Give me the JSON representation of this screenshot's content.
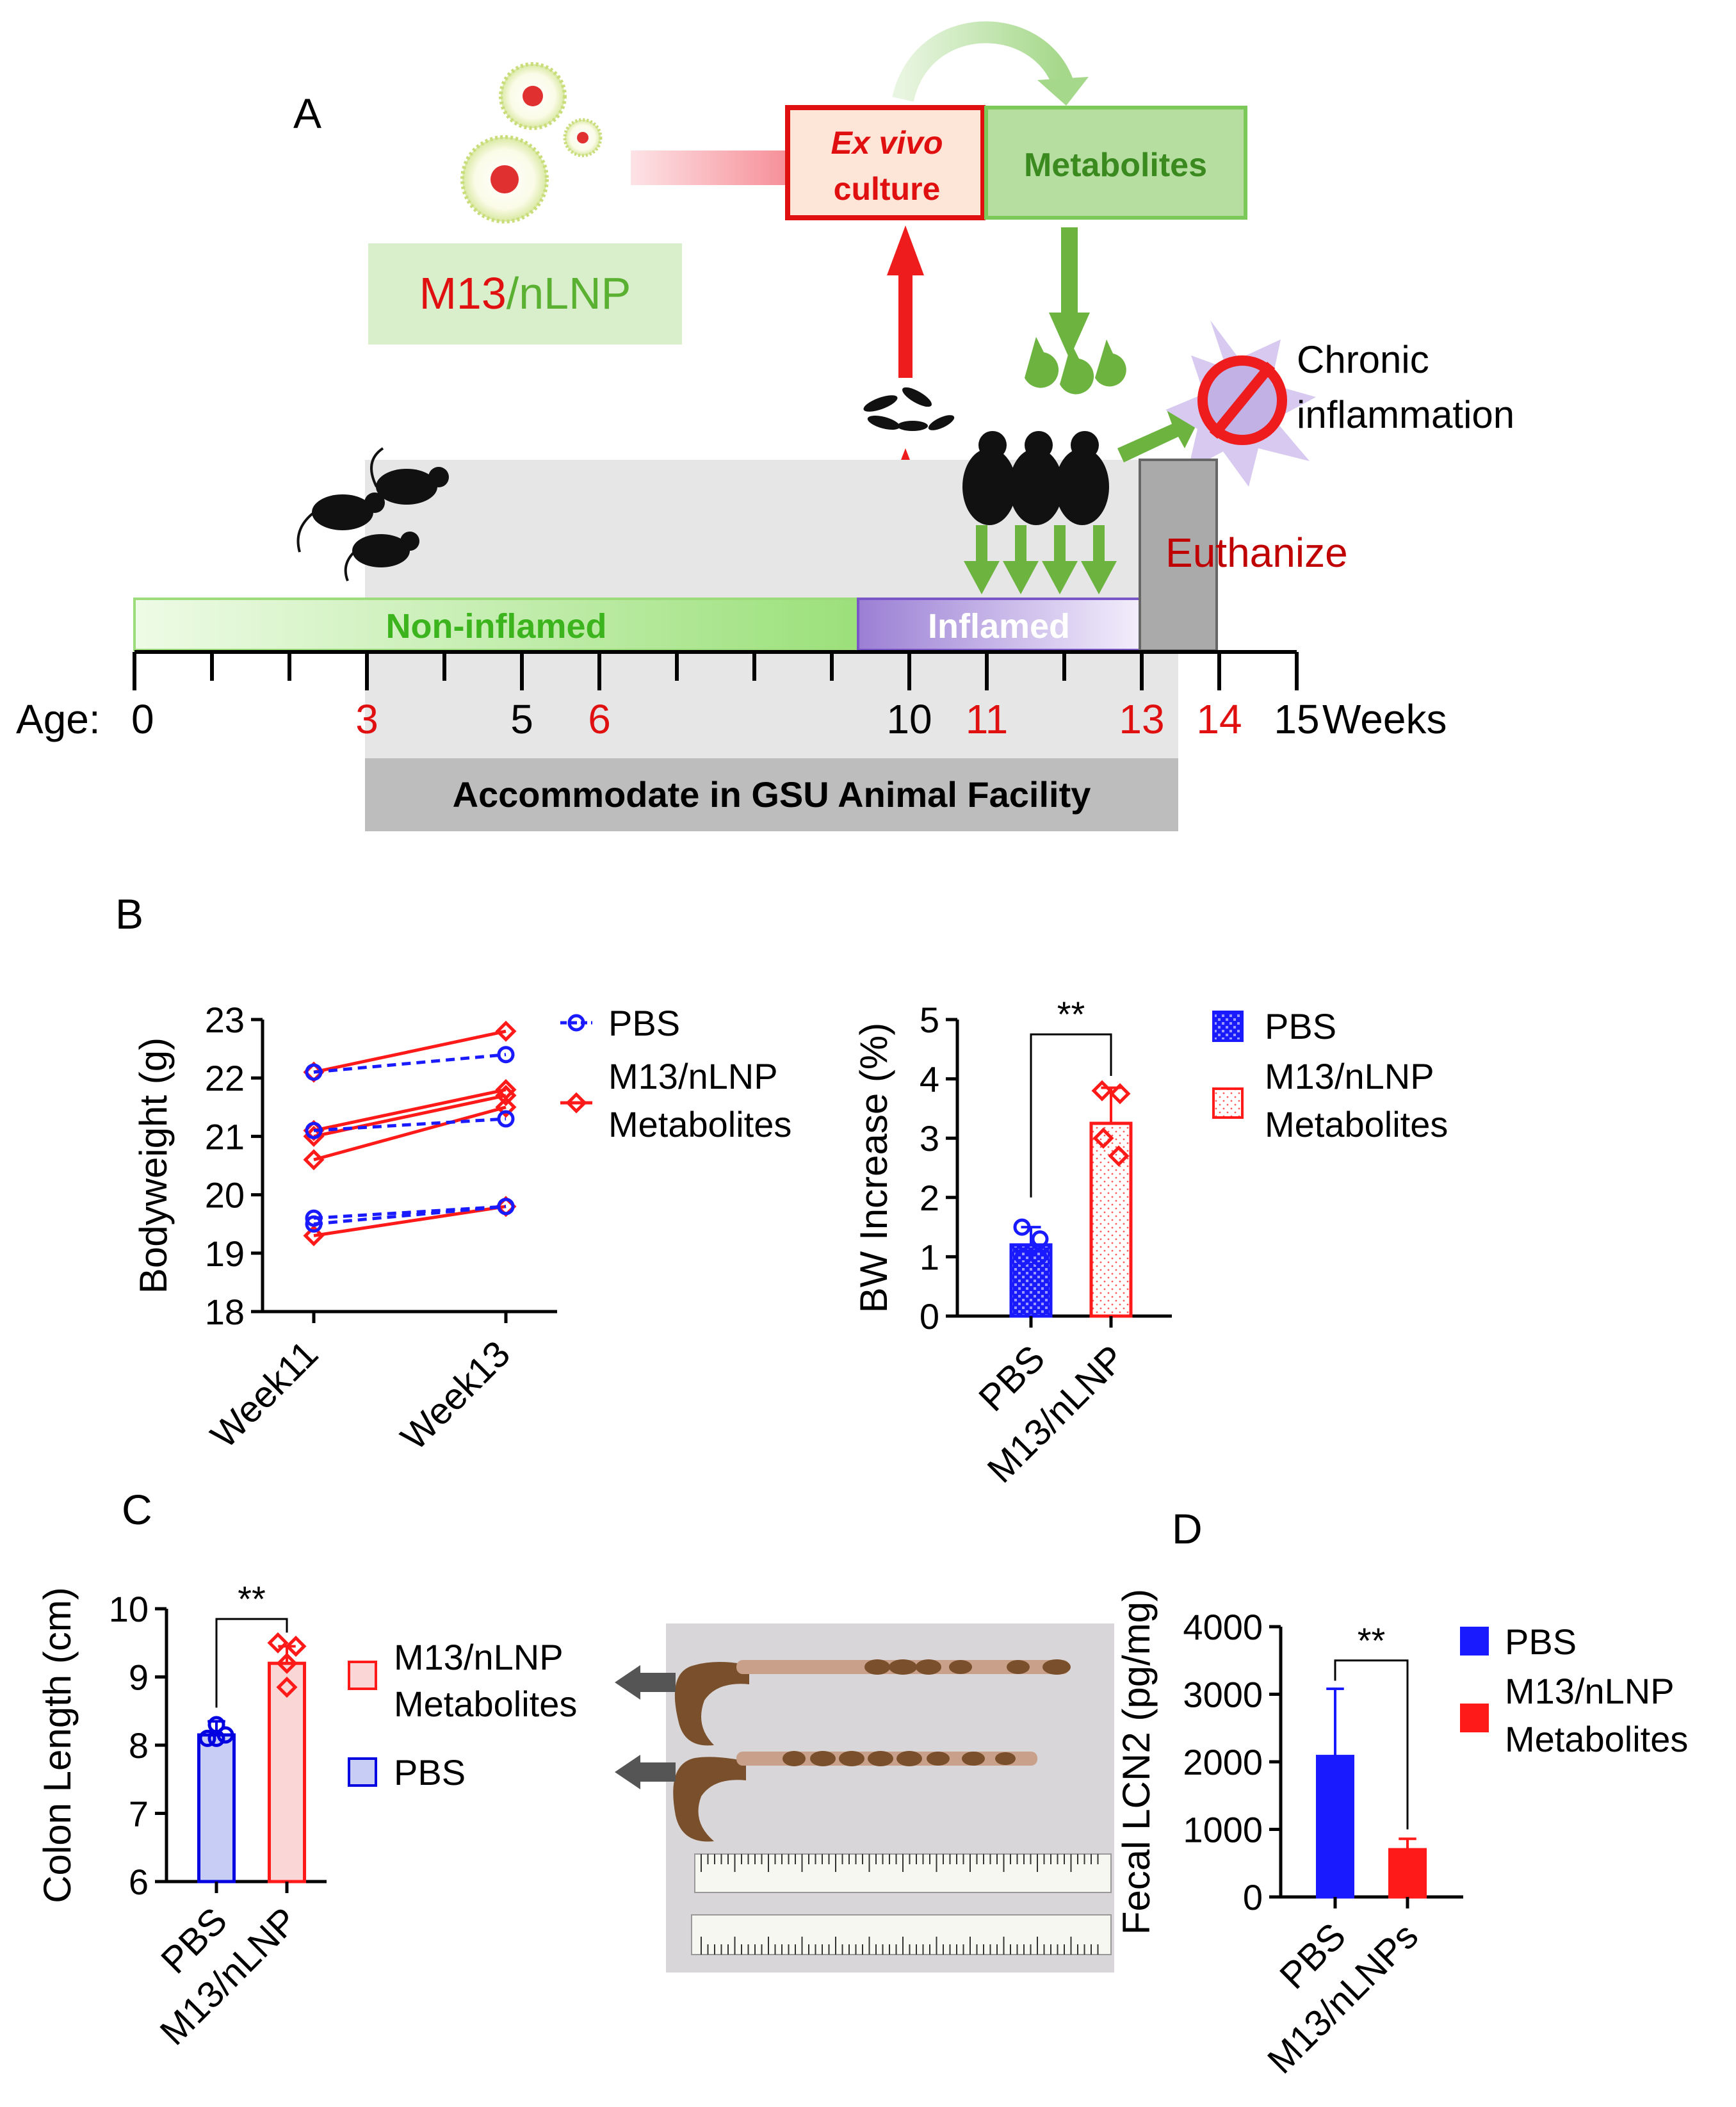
{
  "panel_a": {
    "label": "A",
    "treatment_box": {
      "part1": "M13",
      "part2": "/nLNP"
    },
    "ex_vivo_box": {
      "line1": "Ex vivo",
      "line2": "culture"
    },
    "metabolites_box": "Metabolites",
    "outcome": {
      "line1": "Chronic",
      "line2": "inflammation"
    },
    "euthanize": "Euthanize",
    "phase_noninflamed": "Non-inflamed",
    "phase_inflamed": "Inflamed",
    "age_prefix": "Age:",
    "age_ticks": [
      {
        "label": "0",
        "week": 0,
        "red": false
      },
      {
        "label": "3",
        "week": 3,
        "red": true
      },
      {
        "label": "5",
        "week": 5,
        "red": false
      },
      {
        "label": "6",
        "week": 6,
        "red": true
      },
      {
        "label": "10",
        "week": 10,
        "red": false
      },
      {
        "label": "11",
        "week": 11,
        "red": true
      },
      {
        "label": "13",
        "week": 13,
        "red": true
      },
      {
        "label": "14",
        "week": 14,
        "red": true
      },
      {
        "label": "15",
        "week": 15,
        "red": false
      }
    ],
    "weeks_suffix": "Weeks",
    "facility": "Accommodate in GSU Animal Facility"
  },
  "panel_b": {
    "label": "B"
  },
  "panel_c": {
    "label": "C"
  },
  "panel_d": {
    "label": "D"
  },
  "colors": {
    "pbs": "#1a1aff",
    "m13": "#ff1a1a",
    "pbs_dark": "#0000e0",
    "green": "#6db33f",
    "gray_band": "#e6e6e6"
  },
  "chart_data": [
    {
      "id": "B-left",
      "type": "line",
      "ylabel": "Bodyweight (g)",
      "categories": [
        "Week11",
        "Week13"
      ],
      "ylim": [
        18,
        23
      ],
      "yticks": [
        18,
        19,
        20,
        21,
        22,
        23
      ],
      "legend": [
        "PBS",
        "M13/nLNP Metabolites"
      ],
      "series": [
        {
          "name": "PBS",
          "style": "dashed-circle",
          "paired": [
            [
              22.1,
              22.4
            ],
            [
              21.1,
              21.3
            ],
            [
              19.6,
              19.8
            ],
            [
              19.5,
              19.8
            ]
          ]
        },
        {
          "name": "M13/nLNP Metabolites",
          "style": "solid-diamond",
          "paired": [
            [
              22.1,
              22.8
            ],
            [
              21.1,
              21.8
            ],
            [
              21.0,
              21.7
            ],
            [
              20.6,
              21.5
            ],
            [
              19.3,
              19.8
            ]
          ]
        }
      ]
    },
    {
      "id": "B-right",
      "type": "bar",
      "ylabel": "BW Increase (%)",
      "categories": [
        "PBS",
        "M13/nLNP"
      ],
      "ylim": [
        0,
        5
      ],
      "yticks": [
        0,
        1,
        2,
        3,
        4,
        5
      ],
      "values": [
        1.2,
        3.25
      ],
      "errors": [
        0.3,
        0.6
      ],
      "points": [
        [
          1.5,
          1.3,
          1.0,
          1.0
        ],
        [
          3.8,
          3.75,
          3.0,
          2.7
        ]
      ],
      "significance": "**",
      "legend": [
        "PBS",
        "M13/nLNP Metabolites"
      ]
    },
    {
      "id": "C",
      "type": "bar",
      "ylabel": "Colon Length (cm)",
      "categories": [
        "PBS",
        "M13/nLNP"
      ],
      "ylim": [
        6,
        10
      ],
      "yticks": [
        6,
        7,
        8,
        9,
        10
      ],
      "values": [
        8.15,
        9.2
      ],
      "errors": [
        0.2,
        0.25
      ],
      "points": [
        [
          8.3,
          8.15,
          8.1,
          8.1
        ],
        [
          9.5,
          9.45,
          9.2,
          8.85
        ]
      ],
      "significance": "**",
      "legend": [
        "M13/nLNP Metabolites",
        "PBS"
      ]
    },
    {
      "id": "D",
      "type": "bar",
      "ylabel": "Fecal LCN2 (pg/mg)",
      "categories": [
        "PBS",
        "M13/nLNPs"
      ],
      "ylim": [
        0,
        4000
      ],
      "yticks": [
        0,
        1000,
        2000,
        3000,
        4000
      ],
      "values": [
        2080,
        700
      ],
      "errors": [
        1000,
        160
      ],
      "significance": "**",
      "legend": [
        "PBS",
        "M13/nLNP Metabolites"
      ]
    }
  ]
}
